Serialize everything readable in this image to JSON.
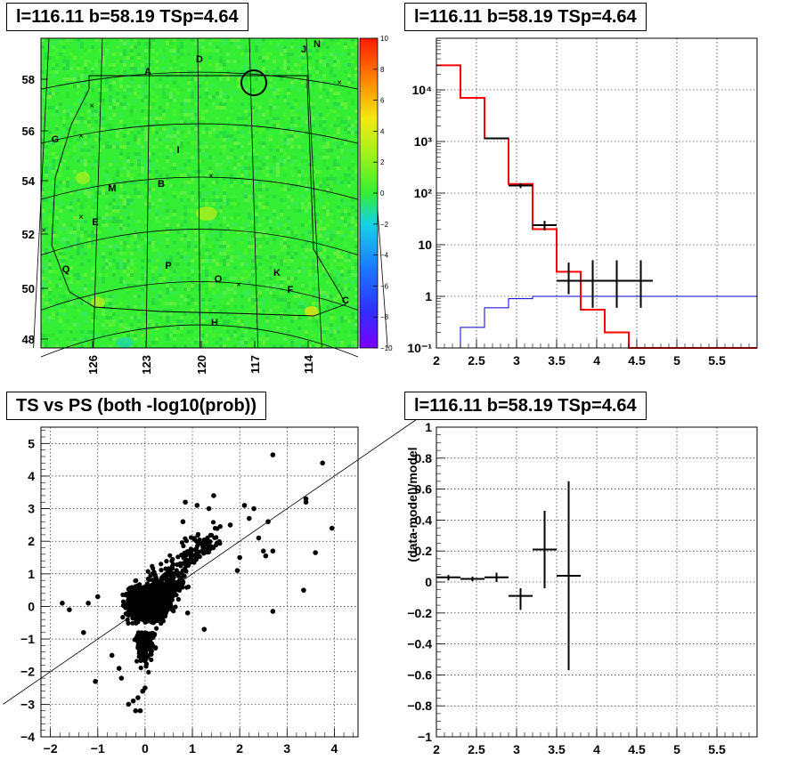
{
  "panels": {
    "tl_title": "l=116.11 b=58.19 TSp=4.64",
    "tr_title": "l=116.11 b=58.19 TSp=4.64",
    "bl_title": "TS vs PS (both -log10(prob))",
    "br_title": "l=116.11 b=58.19 TSp=4.64"
  },
  "colors": {
    "model_line": "#ff0000",
    "background_line": "#0000cc",
    "data": "#000000",
    "map_base": "#33ee33"
  },
  "chart_data": [
    {
      "type": "heatmap",
      "title": "l=116.11 b=58.19 TSp=4.64",
      "x_ticks": [
        "126",
        "123",
        "120",
        "117",
        "114"
      ],
      "y_ticks": [
        "48",
        "50",
        "52",
        "54",
        "56",
        "58"
      ],
      "colorbar": {
        "range": [
          -10,
          10
        ],
        "ticks": [
          "10",
          "8",
          "6",
          "4",
          "2",
          "0",
          "−2",
          "−4",
          "−6",
          "−8",
          "−10"
        ]
      },
      "region_labels": [
        "A",
        "D",
        "J",
        "N",
        "G",
        "I",
        "M",
        "B",
        "E",
        "Q",
        "P",
        "O",
        "K",
        "F",
        "C",
        "H"
      ],
      "marked_source": {
        "l": 116.11,
        "b": 58.19
      }
    },
    {
      "type": "line",
      "title": "l=116.11 b=58.19 TSp=4.64",
      "y_log": true,
      "xlim": [
        2,
        6
      ],
      "ylim": [
        0.1,
        100000
      ],
      "x_ticks": [
        "2",
        "2.5",
        "3",
        "3.5",
        "4",
        "4.5",
        "5",
        "5.5"
      ],
      "y_ticks": [
        "10⁻¹",
        "1",
        "10",
        "10²",
        "10³",
        "10⁴"
      ],
      "grid": true,
      "model_step": {
        "edges": [
          2.0,
          2.3,
          2.6,
          2.9,
          3.2,
          3.5,
          3.8,
          4.1,
          4.4,
          6.0
        ],
        "values": [
          30000,
          7000,
          1150,
          150,
          20,
          3,
          0.55,
          0.2,
          0.1
        ]
      },
      "background_step": {
        "edges": [
          2.3,
          2.6,
          2.9,
          3.2,
          6.0
        ],
        "values": [
          0.25,
          0.6,
          0.9,
          1.0
        ]
      },
      "data_points": [
        {
          "x": 2.75,
          "y": 1150,
          "xerr": 0.15
        },
        {
          "x": 3.05,
          "y": 140,
          "xerr": 0.15,
          "ylo": 125,
          "yhi": 155
        },
        {
          "x": 3.35,
          "y": 24,
          "xerr": 0.15,
          "ylo": 19,
          "yhi": 29
        },
        {
          "x": 3.65,
          "y": 2,
          "xerr": 0.15,
          "ylo": 1.1,
          "yhi": 4.5
        },
        {
          "x": 3.95,
          "y": 2,
          "xerr": 0.15,
          "ylo": 0.6,
          "yhi": 5
        },
        {
          "x": 4.25,
          "y": 2,
          "xerr": 0.15,
          "ylo": 0.6,
          "yhi": 5
        },
        {
          "x": 4.55,
          "y": 2,
          "xerr": 0.15,
          "ylo": 0.6,
          "yhi": 5
        }
      ]
    },
    {
      "type": "scatter",
      "title": "TS vs PS (both -log10(prob))",
      "xlim": [
        -2.2,
        4.5
      ],
      "ylim": [
        -4,
        5.5
      ],
      "x_ticks": [
        "−2",
        "−1",
        "0",
        "1",
        "2",
        "3",
        "4"
      ],
      "y_ticks": [
        "−4",
        "−3",
        "−2",
        "−1",
        "0",
        "1",
        "2",
        "3",
        "4",
        "5"
      ],
      "grid": true,
      "reference_line": {
        "slope": 1.0,
        "intercept": 0.0
      },
      "outliers": [
        [
          2.7,
          4.65
        ],
        [
          3.75,
          4.4
        ],
        [
          3.4,
          3.3
        ],
        [
          3.4,
          3.2
        ],
        [
          3.95,
          2.4
        ],
        [
          3.6,
          1.65
        ],
        [
          3.35,
          0.5
        ],
        [
          2.7,
          -0.15
        ],
        [
          2.6,
          2.6
        ],
        [
          2.5,
          1.7
        ],
        [
          2.55,
          1.55
        ],
        [
          2.7,
          1.7
        ],
        [
          2.4,
          2.1
        ],
        [
          2.1,
          3.1
        ],
        [
          2.3,
          3.0
        ],
        [
          2.2,
          2.7
        ],
        [
          1.45,
          3.4
        ],
        [
          1.35,
          3.0
        ],
        [
          1.1,
          3.1
        ],
        [
          0.85,
          3.2
        ],
        [
          0.8,
          2.6
        ],
        [
          1.8,
          2.5
        ],
        [
          2.0,
          1.5
        ],
        [
          1.95,
          1.1
        ],
        [
          1.25,
          -0.7
        ],
        [
          0.9,
          -0.2
        ],
        [
          -0.35,
          -3.0
        ],
        [
          -0.2,
          -3.2
        ],
        [
          -0.1,
          -3.2
        ],
        [
          -0.15,
          -2.8
        ],
        [
          -0.25,
          -2.9
        ],
        [
          -0.5,
          -2.2
        ],
        [
          -0.7,
          -1.5
        ],
        [
          -1.05,
          -2.3
        ],
        [
          -1.0,
          0.3
        ],
        [
          -1.2,
          0.1
        ],
        [
          -1.6,
          -0.1
        ],
        [
          -1.75,
          0.1
        ],
        [
          -1.3,
          -0.8
        ],
        [
          -0.55,
          -1.9
        ],
        [
          0.0,
          -2.5
        ],
        [
          -0.05,
          -2.6
        ]
      ]
    },
    {
      "type": "scatter",
      "title": "l=116.11 b=58.19 TSp=4.64",
      "ylabel": "(data-model)/model",
      "xlim": [
        2,
        6
      ],
      "ylim": [
        -1,
        1
      ],
      "x_ticks": [
        "2",
        "2.5",
        "3",
        "3.5",
        "4",
        "4.5",
        "5",
        "5.5"
      ],
      "y_ticks": [
        "−1",
        "−0.8",
        "−0.6",
        "−0.4",
        "−0.2",
        "0",
        "0.2",
        "0.4",
        "0.6",
        "0.8",
        "1"
      ],
      "grid": true,
      "data_points": [
        {
          "x": 2.15,
          "y": 0.03,
          "xerr": 0.15,
          "ylo": 0.01,
          "yhi": 0.045
        },
        {
          "x": 2.45,
          "y": 0.02,
          "xerr": 0.15,
          "ylo": 0.005,
          "yhi": 0.035
        },
        {
          "x": 2.75,
          "y": 0.03,
          "xerr": 0.15,
          "ylo": 0.0,
          "yhi": 0.06
        },
        {
          "x": 3.05,
          "y": -0.09,
          "xerr": 0.15,
          "ylo": -0.18,
          "yhi": -0.04
        },
        {
          "x": 3.35,
          "y": 0.21,
          "xerr": 0.15,
          "ylo": -0.04,
          "yhi": 0.46
        },
        {
          "x": 3.65,
          "y": 0.04,
          "xerr": 0.15,
          "ylo": -0.57,
          "yhi": 0.65
        }
      ]
    }
  ]
}
